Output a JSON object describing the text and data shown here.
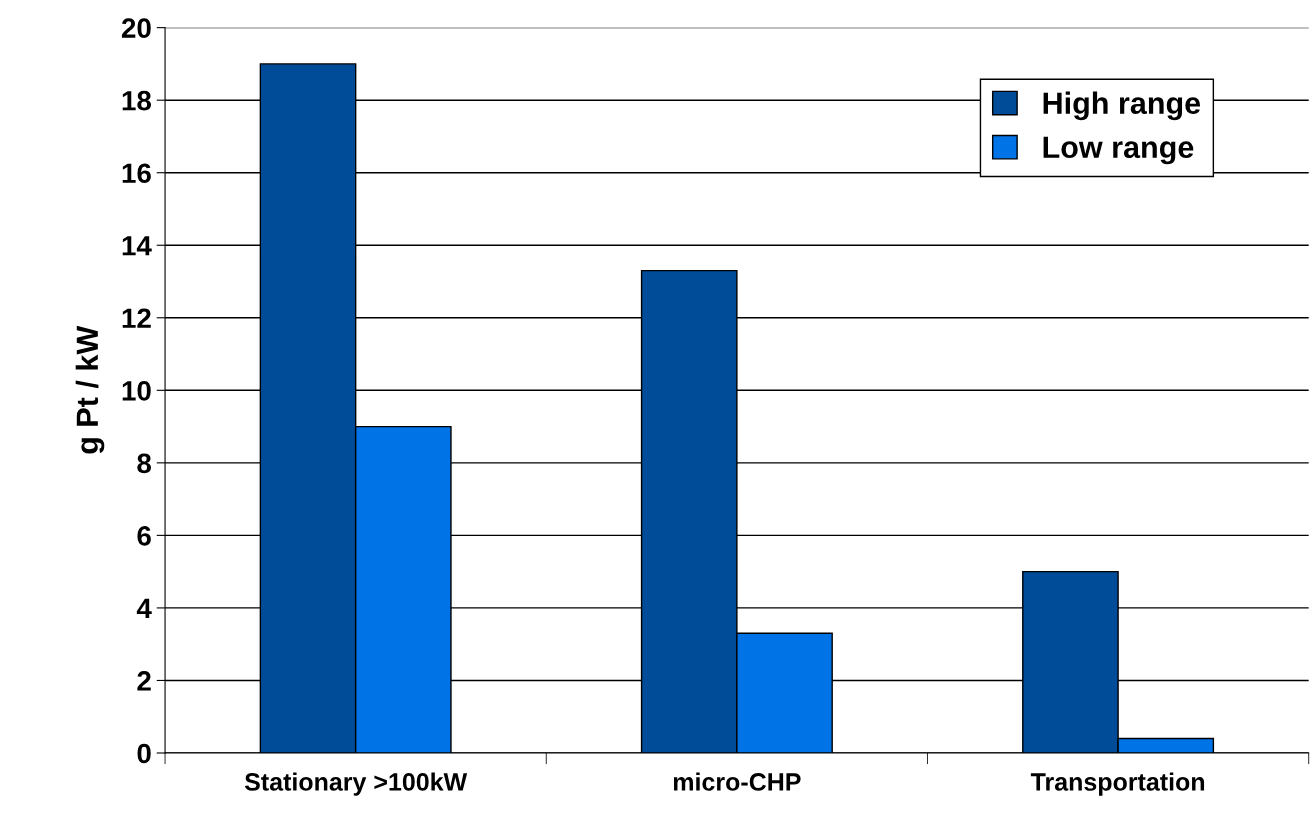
{
  "chart_data": {
    "type": "bar",
    "ylabel": "g Pt / kW",
    "categories": [
      "Stationary >100kW",
      "micro-CHP",
      "Transportation"
    ],
    "series": [
      {
        "name": "High range",
        "color": "#004c99",
        "values": [
          19,
          13.3,
          5
        ]
      },
      {
        "name": "Low range",
        "color": "#0073e6",
        "values": [
          9,
          3.3,
          0.4
        ]
      }
    ],
    "ylim": [
      0,
      20
    ],
    "yticks": [
      0,
      2,
      4,
      6,
      8,
      10,
      12,
      14,
      16,
      18,
      20
    ],
    "grid": "y",
    "legend": "top right"
  }
}
